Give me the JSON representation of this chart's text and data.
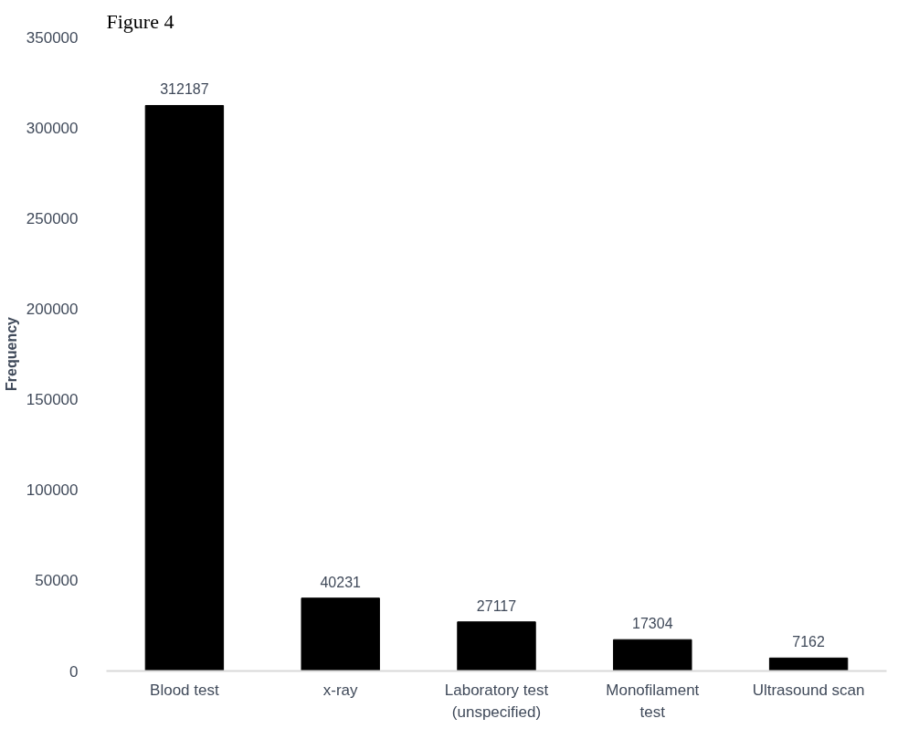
{
  "chart_data": {
    "type": "bar",
    "title": "Figure 4",
    "ylabel": "Frequency",
    "categories": [
      "Blood test",
      "x-ray",
      "Laboratory test (unspecified)",
      "Monofilament test",
      "Ultrasound scan"
    ],
    "values": [
      312187,
      40231,
      27117,
      17304,
      7162
    ],
    "color": "#000000",
    "ylim": [
      0,
      350000
    ],
    "yticks": [
      0,
      50000,
      100000,
      150000,
      200000,
      250000,
      300000,
      350000
    ],
    "data_labels": true,
    "grid": false
  }
}
